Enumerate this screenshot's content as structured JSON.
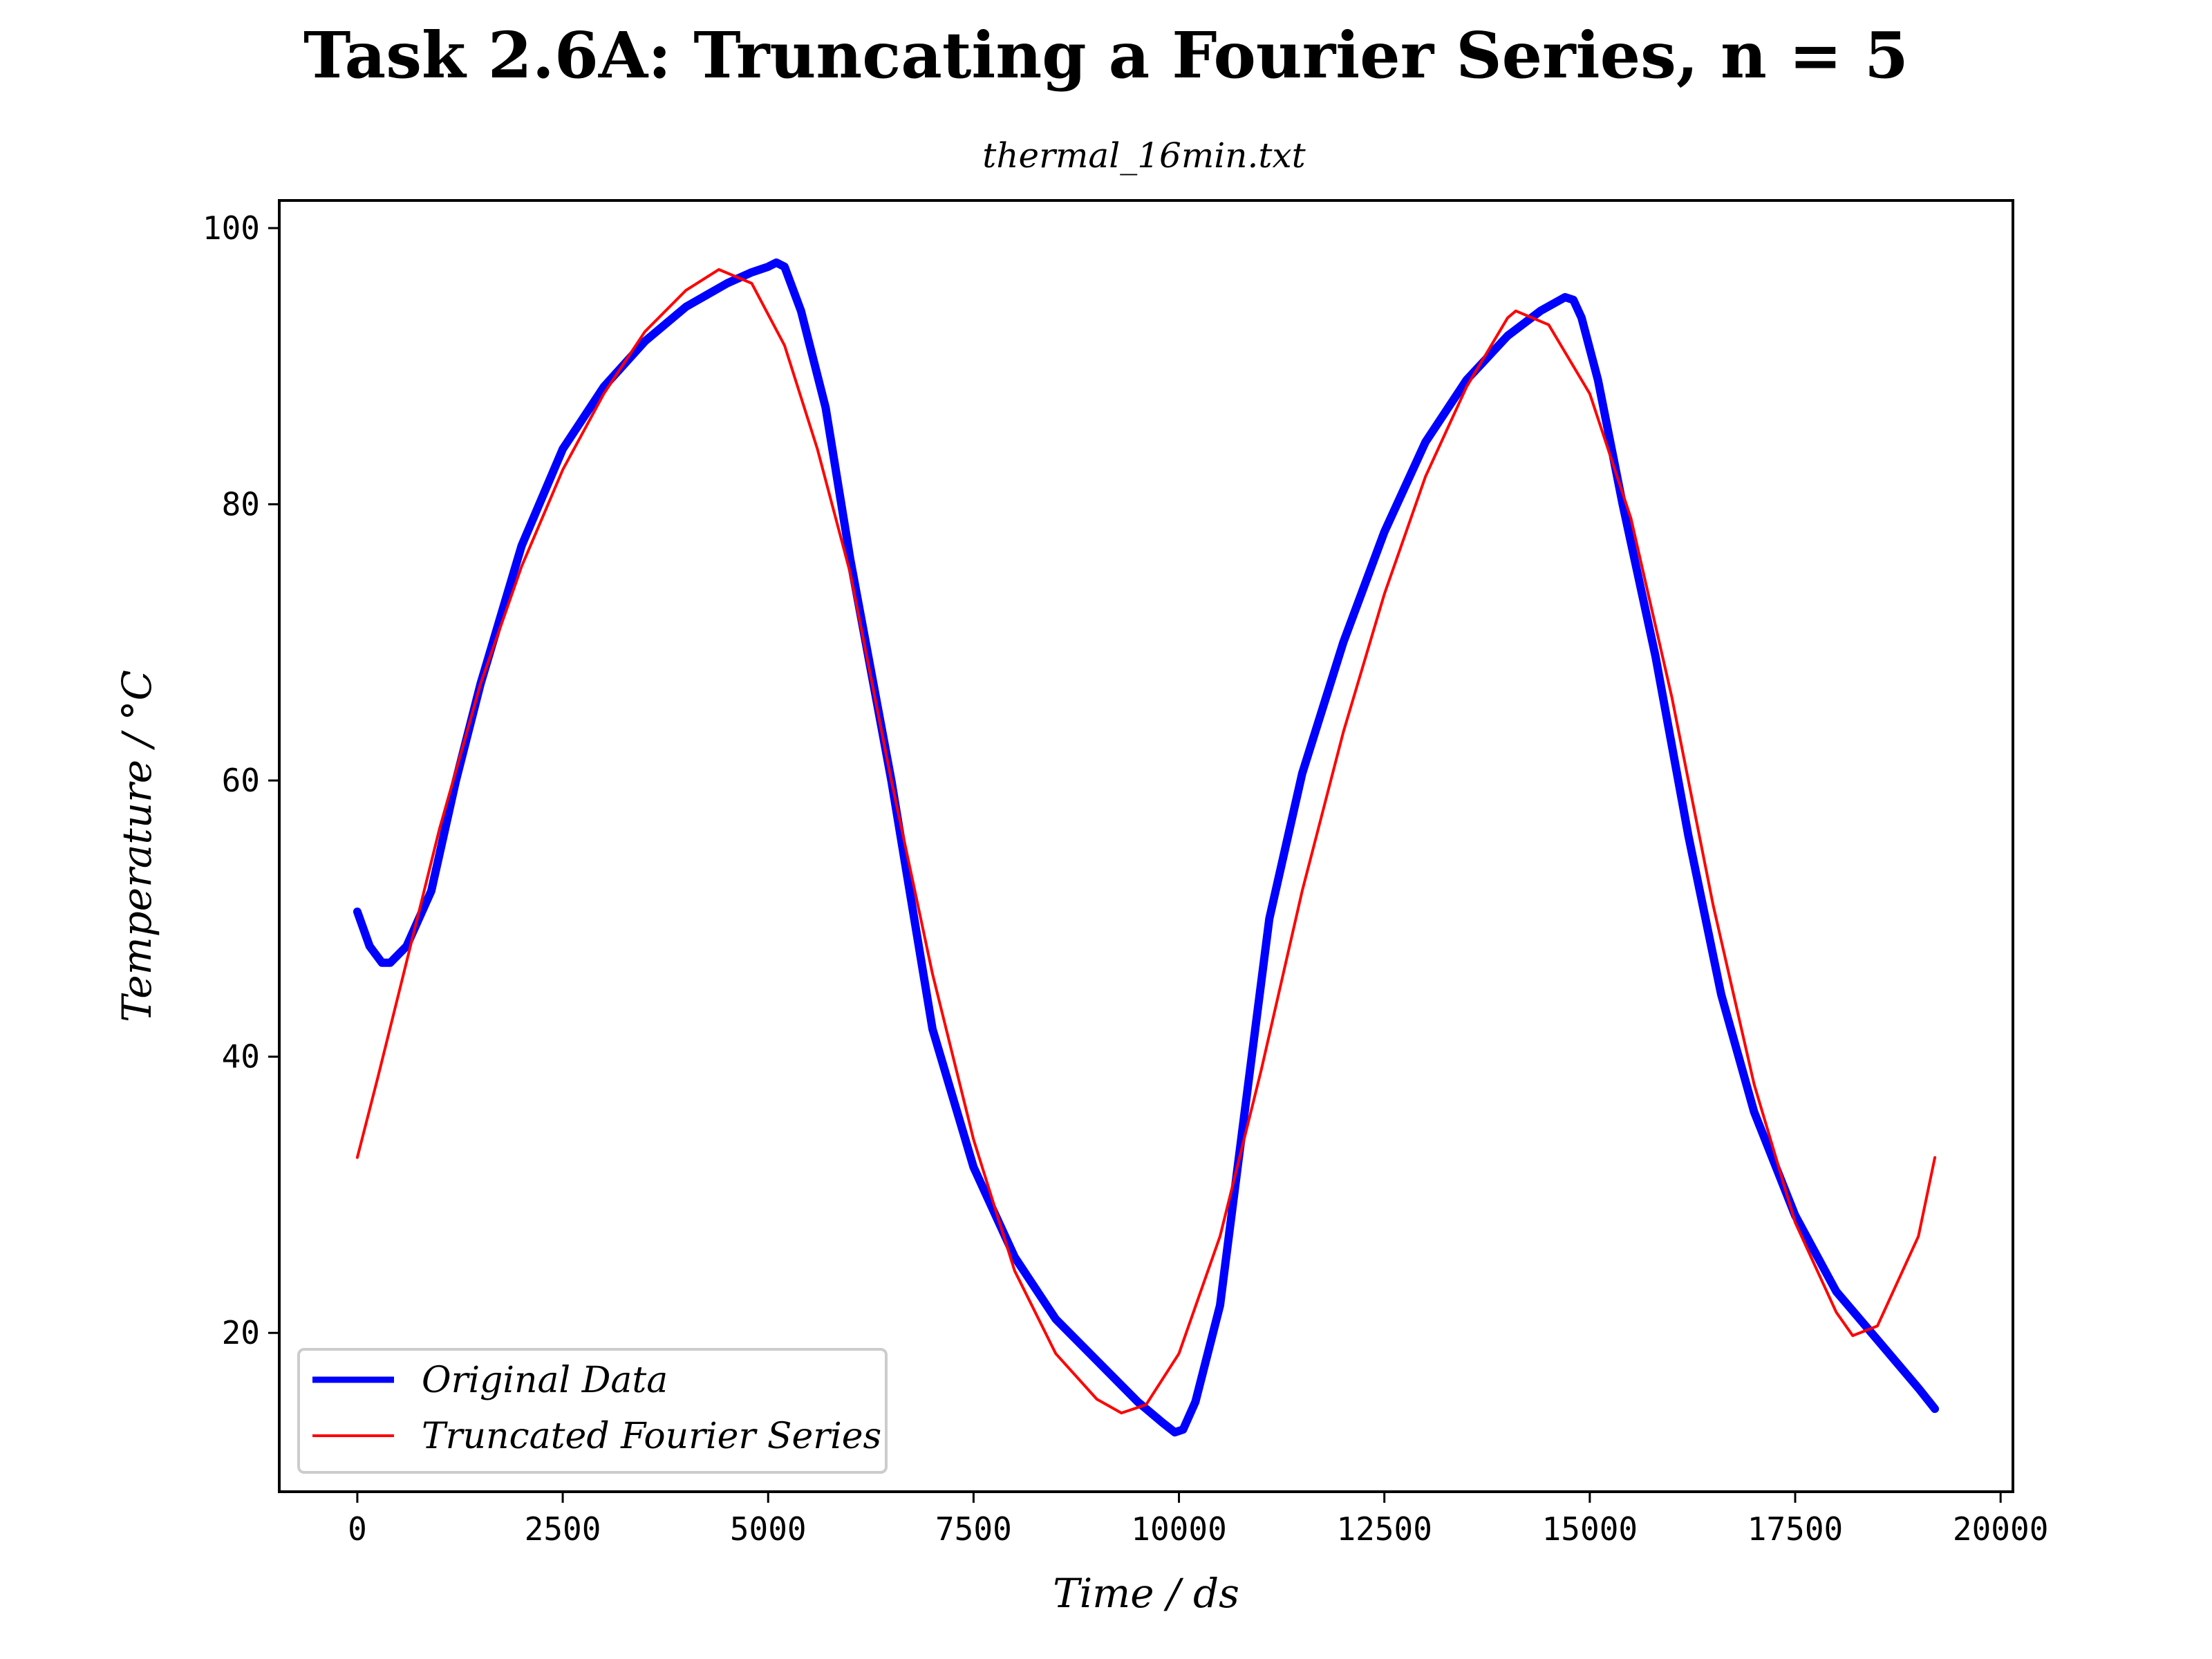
{
  "chart_data": {
    "type": "line",
    "title": "Task 2.6A: Truncating a Fourier Series, n = 5",
    "subtitle": "thermal_16min.txt",
    "xlabel": "Time / ds",
    "ylabel": "Temperature / °C",
    "xlim": [
      -950,
      20150
    ],
    "ylim": [
      8.5,
      102
    ],
    "xticks": [
      0,
      2500,
      5000,
      7500,
      10000,
      12500,
      15000,
      17500,
      20000
    ],
    "yticks": [
      20,
      40,
      60,
      80,
      100
    ],
    "grid": false,
    "legend": "lower-left",
    "series": [
      {
        "name": "Original Data",
        "color": "#0000ff",
        "style": "thick",
        "x": [
          0,
          150,
          300,
          400,
          600,
          900,
          1200,
          1500,
          2000,
          2500,
          3000,
          3500,
          4000,
          4500,
          4800,
          5000,
          5100,
          5200,
          5400,
          5700,
          6000,
          6500,
          7000,
          7500,
          8000,
          8500,
          9000,
          9500,
          9800,
          9950,
          10050,
          10200,
          10500,
          10800,
          11100,
          11500,
          12000,
          12500,
          13000,
          13500,
          14000,
          14400,
          14700,
          14800,
          14900,
          15100,
          15400,
          15800,
          16200,
          16600,
          17000,
          17500,
          18000,
          18500,
          19000,
          19200
        ],
        "y": [
          50.5,
          48,
          46.8,
          46.8,
          48,
          52,
          60,
          67,
          77,
          84,
          88.5,
          91.8,
          94.3,
          96,
          96.8,
          97.2,
          97.5,
          97.2,
          94,
          87,
          76,
          60,
          42,
          32,
          25.5,
          21,
          18,
          15,
          13.5,
          12.8,
          13,
          15,
          22,
          36,
          50,
          60.5,
          70,
          78,
          84.5,
          89,
          92.2,
          94,
          95,
          94.8,
          93.5,
          89,
          80,
          69,
          56,
          44.5,
          36,
          28.5,
          23,
          19.5,
          16,
          14.5
        ]
      },
      {
        "name": "Truncated Fourier Series",
        "color": "#ff0000",
        "style": "thin",
        "x": [
          0,
          250,
          500,
          750,
          1000,
          1500,
          2000,
          2500,
          3000,
          3500,
          4000,
          4400,
          4800,
          5200,
          5600,
          6000,
          6500,
          7000,
          7500,
          8000,
          8500,
          9000,
          9300,
          9600,
          10000,
          10500,
          11000,
          11500,
          12000,
          12500,
          13000,
          13500,
          14000,
          14100,
          14500,
          15000,
          15500,
          16000,
          16500,
          17000,
          17500,
          18000,
          18200,
          18500,
          19000,
          19200
        ],
        "y": [
          32.7,
          38.5,
          44.5,
          50.5,
          56.5,
          67,
          75.5,
          82.5,
          88,
          92.5,
          95.5,
          97,
          96,
          91.5,
          84,
          75,
          60,
          46,
          34,
          24.5,
          18.5,
          15.2,
          14.2,
          14.8,
          18.5,
          27,
          39,
          52,
          63.5,
          73.5,
          82,
          88.5,
          93.5,
          94,
          93,
          88,
          79,
          66,
          51,
          38,
          28,
          21.5,
          19.8,
          20.5,
          27,
          32.7
        ]
      }
    ]
  }
}
